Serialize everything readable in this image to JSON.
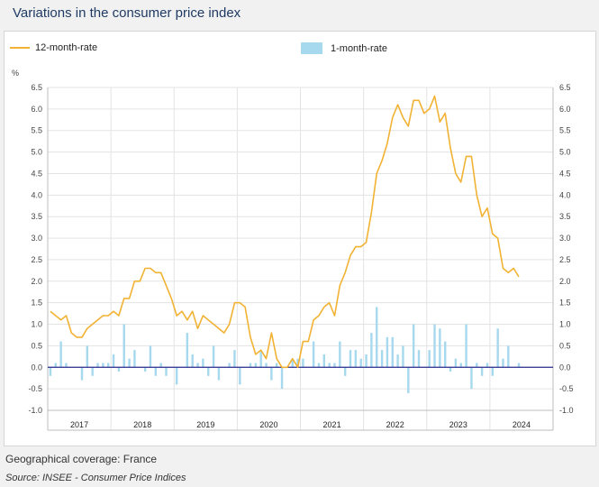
{
  "header": {
    "title": "Variations in the consumer price index"
  },
  "legend": {
    "line_label": "12-month-rate",
    "bar_label": "1-month-rate"
  },
  "footer": {
    "coverage": "Geographical coverage: France",
    "source": "Source: INSEE - Consumer Price Indices"
  },
  "colors": {
    "line": "#f2b233",
    "bars": "#a6d8ee",
    "zero": "#2a2a8c"
  },
  "chart_data": {
    "type": "line+bar",
    "title": "Variations in the consumer price index",
    "unit_label": "%",
    "ylim": [
      -1.0,
      6.5
    ],
    "yticks": [
      "6.5",
      "6.0",
      "5.5",
      "5.0",
      "4.5",
      "4.0",
      "3.5",
      "3.0",
      "2.5",
      "2.0",
      "1.5",
      "1.0",
      "0.5",
      "0.0",
      "-0.5",
      "-1.0"
    ],
    "ytick_values": [
      6.5,
      6.0,
      5.5,
      5.0,
      4.5,
      4.0,
      3.5,
      3.0,
      2.5,
      2.0,
      1.5,
      1.0,
      0.5,
      0.0,
      -0.5,
      -1.0
    ],
    "years": [
      "2017",
      "2018",
      "2019",
      "2020",
      "2021",
      "2022",
      "2023",
      "2024"
    ],
    "months_per_year": 12,
    "series": [
      {
        "name": "12-month-rate",
        "type": "line",
        "values": [
          1.3,
          1.2,
          1.1,
          1.2,
          0.8,
          0.7,
          0.7,
          0.9,
          1.0,
          1.1,
          1.2,
          1.2,
          1.3,
          1.2,
          1.6,
          1.6,
          2.0,
          2.0,
          2.3,
          2.3,
          2.2,
          2.2,
          1.9,
          1.6,
          1.2,
          1.3,
          1.1,
          1.3,
          0.9,
          1.2,
          1.1,
          1.0,
          0.9,
          0.8,
          1.0,
          1.5,
          1.5,
          1.4,
          0.7,
          0.3,
          0.4,
          0.2,
          0.8,
          0.2,
          0.0,
          0.0,
          0.2,
          0.0,
          0.6,
          0.6,
          1.1,
          1.2,
          1.4,
          1.5,
          1.2,
          1.9,
          2.2,
          2.6,
          2.8,
          2.8,
          2.9,
          3.6,
          4.5,
          4.8,
          5.2,
          5.8,
          6.1,
          5.8,
          5.6,
          6.2,
          6.2,
          5.9,
          6.0,
          6.3,
          5.7,
          5.9,
          5.1,
          4.5,
          4.3,
          4.9,
          4.9,
          4.0,
          3.5,
          3.7,
          3.1,
          3.0,
          2.3,
          2.2,
          2.3,
          2.1
        ]
      },
      {
        "name": "1-month-rate",
        "type": "bar",
        "values": [
          -0.2,
          0.1,
          0.6,
          0.1,
          0.0,
          0.0,
          -0.3,
          0.5,
          -0.2,
          0.1,
          0.1,
          0.1,
          0.3,
          -0.1,
          1.0,
          0.2,
          0.4,
          0.0,
          -0.1,
          0.5,
          -0.2,
          0.1,
          -0.2,
          0.0,
          -0.4,
          0.0,
          0.8,
          0.3,
          0.1,
          0.2,
          -0.2,
          0.5,
          -0.3,
          0.0,
          0.1,
          0.4,
          -0.4,
          0.0,
          0.1,
          0.1,
          0.4,
          0.1,
          -0.3,
          0.1,
          -0.5,
          0.0,
          0.2,
          0.2,
          0.2,
          0.0,
          0.6,
          0.1,
          0.3,
          0.1,
          0.1,
          0.6,
          -0.2,
          0.4,
          0.4,
          0.2,
          0.3,
          0.8,
          1.4,
          0.4,
          0.7,
          0.7,
          0.3,
          0.5,
          -0.6,
          1.0,
          0.4,
          0.0,
          0.4,
          1.0,
          0.9,
          0.6,
          -0.1,
          0.2,
          0.1,
          1.0,
          -0.5,
          0.1,
          -0.2,
          0.1,
          -0.2,
          0.9,
          0.2,
          0.5,
          0.0,
          0.1
        ]
      }
    ]
  }
}
